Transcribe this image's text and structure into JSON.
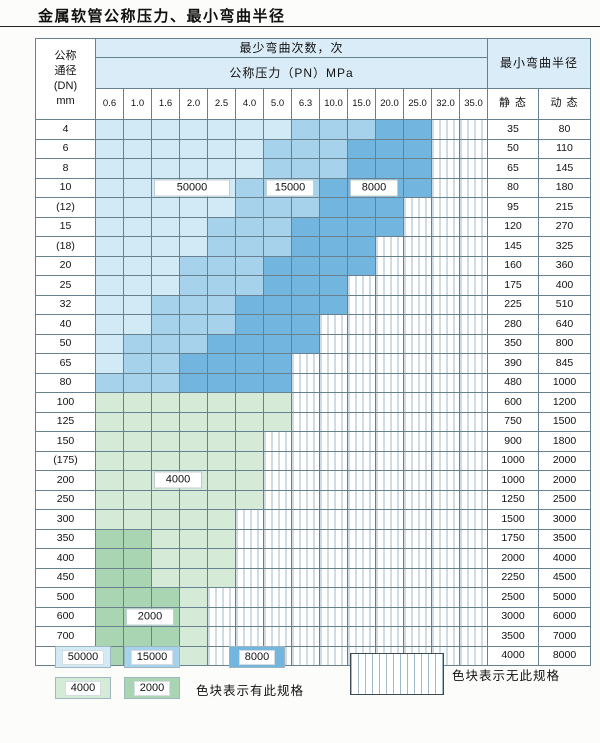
{
  "title": "金属软管公称压力、最小弯曲半径",
  "table": {
    "header": {
      "dn_label_lines": [
        "公称",
        "通径",
        "(DN)",
        "mm"
      ],
      "bend_cycles_label": "最少弯曲次数，次",
      "pressure_label": "公称压力（PN）MPa",
      "bend_radius_label": "最小弯曲半径",
      "static_label": "静 态",
      "dynamic_label": "动 态",
      "pressures": [
        "0.6",
        "1.0",
        "1.6",
        "2.0",
        "2.5",
        "4.0",
        "5.0",
        "6.3",
        "10.0",
        "15.0",
        "20.0",
        "25.0",
        "32.0",
        "35.0"
      ]
    },
    "zone_map": {
      "A": "50000",
      "B": "15000",
      "C": "8000",
      "D": "4000",
      "E": "2000",
      "-": "none"
    },
    "rows": [
      {
        "dn": "4",
        "zones": "AAAAAAABBBCC--",
        "static": "35",
        "dynamic": "80"
      },
      {
        "dn": "6",
        "zones": "AAAAAABBBCCC--",
        "static": "50",
        "dynamic": "110"
      },
      {
        "dn": "8",
        "zones": "AAAAAABBBCCC--",
        "static": "65",
        "dynamic": "145"
      },
      {
        "dn": "10",
        "zones": "AAAAABBBCCCC--",
        "static": "80",
        "dynamic": "180"
      },
      {
        "dn": "(12)",
        "zones": "AAAAABBBCCC---",
        "static": "95",
        "dynamic": "215"
      },
      {
        "dn": "15",
        "zones": "AAAABBBCCCC---",
        "static": "120",
        "dynamic": "270"
      },
      {
        "dn": "(18)",
        "zones": "AAAABBBCCC----",
        "static": "145",
        "dynamic": "325"
      },
      {
        "dn": "20",
        "zones": "AAABBBCCCC----",
        "static": "160",
        "dynamic": "360"
      },
      {
        "dn": "25",
        "zones": "AAABBBCCC-----",
        "static": "175",
        "dynamic": "400"
      },
      {
        "dn": "32",
        "zones": "AABBBCCCC-----",
        "static": "225",
        "dynamic": "510"
      },
      {
        "dn": "40",
        "zones": "AABBBCCC------",
        "static": "280",
        "dynamic": "640"
      },
      {
        "dn": "50",
        "zones": "ABBBCCCC------",
        "static": "350",
        "dynamic": "800"
      },
      {
        "dn": "65",
        "zones": "ABBCCCC-------",
        "static": "390",
        "dynamic": "845"
      },
      {
        "dn": "80",
        "zones": "BBBCCCC-------",
        "static": "480",
        "dynamic": "1000"
      },
      {
        "dn": "100",
        "zones": "DDDDDDD-------",
        "static": "600",
        "dynamic": "1200"
      },
      {
        "dn": "125",
        "zones": "DDDDDDD-------",
        "static": "750",
        "dynamic": "1500"
      },
      {
        "dn": "150",
        "zones": "DDDDDD--------",
        "static": "900",
        "dynamic": "1800"
      },
      {
        "dn": "(175)",
        "zones": "DDDDDD--------",
        "static": "1000",
        "dynamic": "2000"
      },
      {
        "dn": "200",
        "zones": "DDDDDD--------",
        "static": "1000",
        "dynamic": "2000"
      },
      {
        "dn": "250",
        "zones": "DDDDDD--------",
        "static": "1250",
        "dynamic": "2500"
      },
      {
        "dn": "300",
        "zones": "DDDDD---------",
        "static": "1500",
        "dynamic": "3000"
      },
      {
        "dn": "350",
        "zones": "EEDDD---------",
        "static": "1750",
        "dynamic": "3500"
      },
      {
        "dn": "400",
        "zones": "EEDDD---------",
        "static": "2000",
        "dynamic": "4000"
      },
      {
        "dn": "450",
        "zones": "EEDDD---------",
        "static": "2250",
        "dynamic": "4500"
      },
      {
        "dn": "500",
        "zones": "EEED----------",
        "static": "2500",
        "dynamic": "5000"
      },
      {
        "dn": "600",
        "zones": "EEED----------",
        "static": "3000",
        "dynamic": "6000"
      },
      {
        "dn": "700",
        "zones": "EEED----------",
        "static": "3500",
        "dynamic": "7000"
      },
      {
        "dn": "800",
        "zones": "EEED----------",
        "static": "4000",
        "dynamic": "8000"
      }
    ]
  },
  "cell_labels": [
    {
      "dn": "10",
      "col": 2,
      "span": 3,
      "text": "50000"
    },
    {
      "dn": "10",
      "col": 6,
      "span": 2,
      "text": "15000"
    },
    {
      "dn": "10",
      "col": 9,
      "span": 2,
      "text": "8000"
    },
    {
      "dn": "200",
      "col": 2,
      "span": 2,
      "text": "4000"
    },
    {
      "dn": "600",
      "col": 1,
      "span": 2,
      "text": "2000"
    }
  ],
  "legend": {
    "items": [
      {
        "label": "50000",
        "zone": "A"
      },
      {
        "label": "15000",
        "zone": "B"
      },
      {
        "label": "8000",
        "zone": "C"
      },
      {
        "label": "4000",
        "zone": "D"
      },
      {
        "label": "2000",
        "zone": "E"
      }
    ],
    "has_spec_text": "色块表示有此规格",
    "no_spec_text": "色块表示无此规格"
  },
  "colors": {
    "z50000": "#d2e9f6",
    "z15000": "#a6d2ec",
    "z8000": "#72b6e0",
    "z4000": "#d5ebd8",
    "z2000": "#a9d5b2",
    "stripe_line": "#9fb9c8",
    "header_bg": "#d9ecf8",
    "border": "#68818f"
  }
}
